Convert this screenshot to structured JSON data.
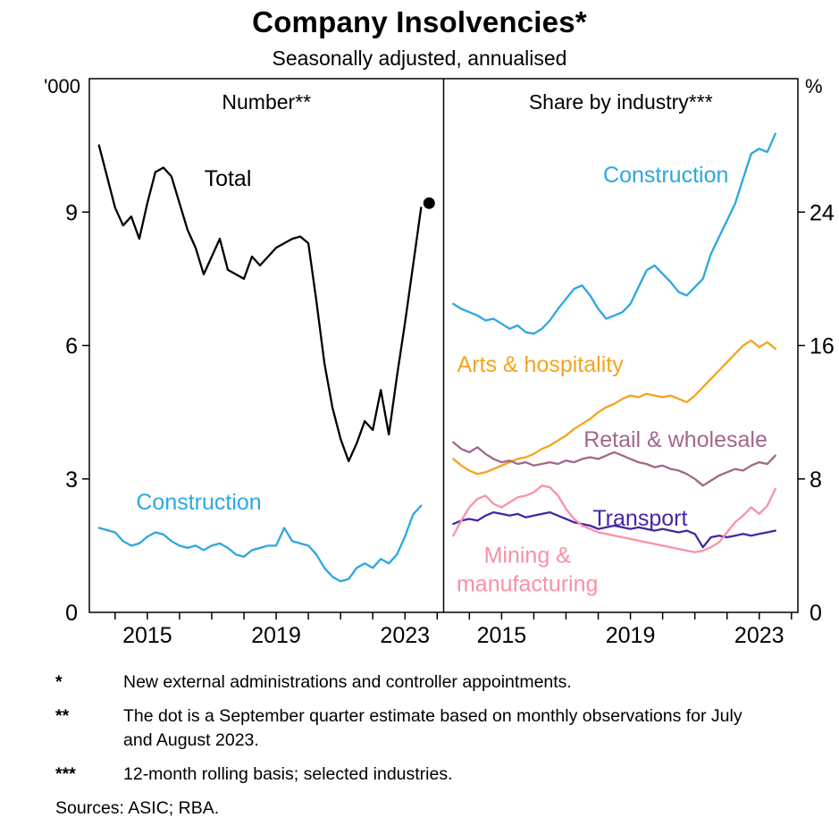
{
  "page": {
    "title": "Company Insolvencies*",
    "subtitle": "Seasonally adjusted, annualised"
  },
  "chart_data": {
    "type": "line",
    "title": "Company Insolvencies*",
    "subtitle": "Seasonally adjusted, annualised",
    "x_domain": [
      2013.2,
      2024.2
    ],
    "x_start": 2013.5,
    "x_step": 0.25,
    "xticks_labeled": [
      2015,
      2019,
      2023
    ],
    "xticks_minor_years": [
      2014,
      2015,
      2016,
      2017,
      2018,
      2019,
      2020,
      2021,
      2022,
      2023,
      2024
    ],
    "panels": [
      {
        "title": "Number**",
        "unit": "'000",
        "ylim": [
          0,
          12
        ],
        "yticks": [
          0,
          3,
          6,
          9
        ],
        "series": [
          {
            "name": "Total",
            "color": "#000000",
            "values": [
              10.5,
              9.8,
              9.1,
              8.7,
              8.9,
              8.4,
              9.2,
              9.9,
              10.0,
              9.8,
              9.2,
              8.6,
              8.2,
              7.6,
              8.0,
              8.4,
              7.7,
              7.6,
              7.5,
              8.0,
              7.8,
              8.0,
              8.2,
              8.3,
              8.4,
              8.45,
              8.3,
              7.0,
              5.6,
              4.6,
              3.9,
              3.4,
              3.8,
              4.3,
              4.1,
              5.0,
              4.0,
              5.3,
              6.5,
              7.8,
              9.1
            ]
          },
          {
            "name": "Construction",
            "color": "#2DA7DF",
            "values": [
              1.9,
              1.85,
              1.8,
              1.6,
              1.5,
              1.55,
              1.7,
              1.8,
              1.75,
              1.6,
              1.5,
              1.45,
              1.5,
              1.4,
              1.5,
              1.55,
              1.45,
              1.3,
              1.25,
              1.4,
              1.45,
              1.5,
              1.5,
              1.9,
              1.6,
              1.55,
              1.5,
              1.3,
              1.0,
              0.8,
              0.7,
              0.75,
              1.0,
              1.1,
              1.0,
              1.2,
              1.1,
              1.3,
              1.7,
              2.2,
              2.4
            ]
          }
        ],
        "estimate_dot": {
          "x": 2023.75,
          "value": 9.2,
          "color": "#000000"
        },
        "labels": [
          {
            "text": "Total",
            "x": 2017.5,
            "value": 9.75,
            "color": "#000000"
          },
          {
            "text": "Construction",
            "x": 2016.6,
            "value": 2.47,
            "color": "#2DA7DF"
          }
        ]
      },
      {
        "title": "Share by industry***",
        "unit": "%",
        "ylim": [
          0,
          32
        ],
        "yticks": [
          0,
          8,
          16,
          24
        ],
        "series": [
          {
            "name": "Construction",
            "color": "#2DA7DF",
            "values": [
              18.5,
              18.2,
              18.0,
              17.8,
              17.5,
              17.6,
              17.3,
              17.0,
              17.2,
              16.8,
              16.7,
              17.0,
              17.5,
              18.2,
              18.8,
              19.4,
              19.6,
              19.0,
              18.2,
              17.6,
              17.8,
              18.0,
              18.5,
              19.5,
              20.5,
              20.8,
              20.3,
              19.8,
              19.2,
              19.0,
              19.5,
              20.0,
              21.5,
              22.5,
              23.5,
              24.5,
              26.0,
              27.5,
              27.8,
              27.6,
              28.7
            ]
          },
          {
            "name": "Arts & hospitality",
            "color": "#F5A31E",
            "values": [
              9.2,
              8.8,
              8.5,
              8.3,
              8.4,
              8.6,
              8.8,
              9.0,
              9.2,
              9.3,
              9.5,
              9.8,
              10.0,
              10.3,
              10.6,
              11.0,
              11.3,
              11.6,
              12.0,
              12.3,
              12.5,
              12.8,
              13.0,
              12.9,
              13.1,
              13.0,
              12.9,
              13.0,
              12.8,
              12.6,
              13.0,
              13.5,
              14.0,
              14.5,
              15.0,
              15.5,
              16.0,
              16.3,
              15.9,
              16.2,
              15.8
            ]
          },
          {
            "name": "Retail & wholesale",
            "color": "#A2678B",
            "values": [
              10.2,
              9.8,
              9.6,
              9.9,
              9.5,
              9.2,
              9.0,
              9.1,
              8.9,
              9.0,
              8.8,
              8.9,
              9.0,
              8.9,
              9.1,
              9.0,
              9.2,
              9.3,
              9.2,
              9.4,
              9.6,
              9.4,
              9.2,
              9.0,
              8.9,
              8.7,
              8.8,
              8.6,
              8.5,
              8.3,
              8.0,
              7.6,
              7.9,
              8.2,
              8.4,
              8.6,
              8.5,
              8.8,
              9.0,
              8.9,
              9.4
            ]
          },
          {
            "name": "Transport",
            "color": "#4527A3",
            "values": [
              5.3,
              5.5,
              5.6,
              5.5,
              5.8,
              6.0,
              5.9,
              5.8,
              5.9,
              5.7,
              5.8,
              5.9,
              6.0,
              5.8,
              5.6,
              5.4,
              5.3,
              5.2,
              5.0,
              5.1,
              5.2,
              5.1,
              5.0,
              5.1,
              5.0,
              4.9,
              5.0,
              4.9,
              4.8,
              4.9,
              4.7,
              3.9,
              4.5,
              4.6,
              4.5,
              4.6,
              4.7,
              4.6,
              4.7,
              4.8,
              4.9
            ]
          },
          {
            "name": "Mining & manufacturing",
            "color": "#F891A5",
            "values": [
              4.6,
              5.5,
              6.3,
              6.8,
              7.0,
              6.5,
              6.3,
              6.6,
              6.9,
              7.0,
              7.2,
              7.6,
              7.5,
              7.0,
              6.2,
              5.6,
              5.2,
              5.0,
              4.8,
              4.7,
              4.6,
              4.5,
              4.4,
              4.3,
              4.2,
              4.1,
              4.0,
              3.9,
              3.8,
              3.7,
              3.6,
              3.7,
              3.9,
              4.2,
              4.8,
              5.4,
              5.8,
              6.3,
              5.9,
              6.4,
              7.4
            ]
          }
        ],
        "labels": [
          {
            "text": "Construction",
            "x": 2020.1,
            "value": 26.2,
            "color": "#2DA7DF"
          },
          {
            "text": "Arts & hospitality",
            "x": 2016.2,
            "value": 14.85,
            "color": "#F5A31E"
          },
          {
            "text": "Retail & wholesale",
            "x": 2020.4,
            "value": 10.35,
            "color": "#A2678B"
          },
          {
            "text": "Transport",
            "x": 2019.3,
            "value": 5.63,
            "color": "#4527A3"
          },
          {
            "text": "Mining &\nmanufacturing",
            "x": 2015.8,
            "value": 3.4,
            "color": "#F891A5"
          }
        ]
      }
    ]
  },
  "footnotes": [
    {
      "marker": "*",
      "text": "New external administrations and controller appointments."
    },
    {
      "marker": "**",
      "text": "The dot is a September quarter estimate based on monthly observations for July and August 2023."
    },
    {
      "marker": "***",
      "text": "12-month rolling basis; selected industries."
    }
  ],
  "sources": "Sources: ASIC; RBA."
}
